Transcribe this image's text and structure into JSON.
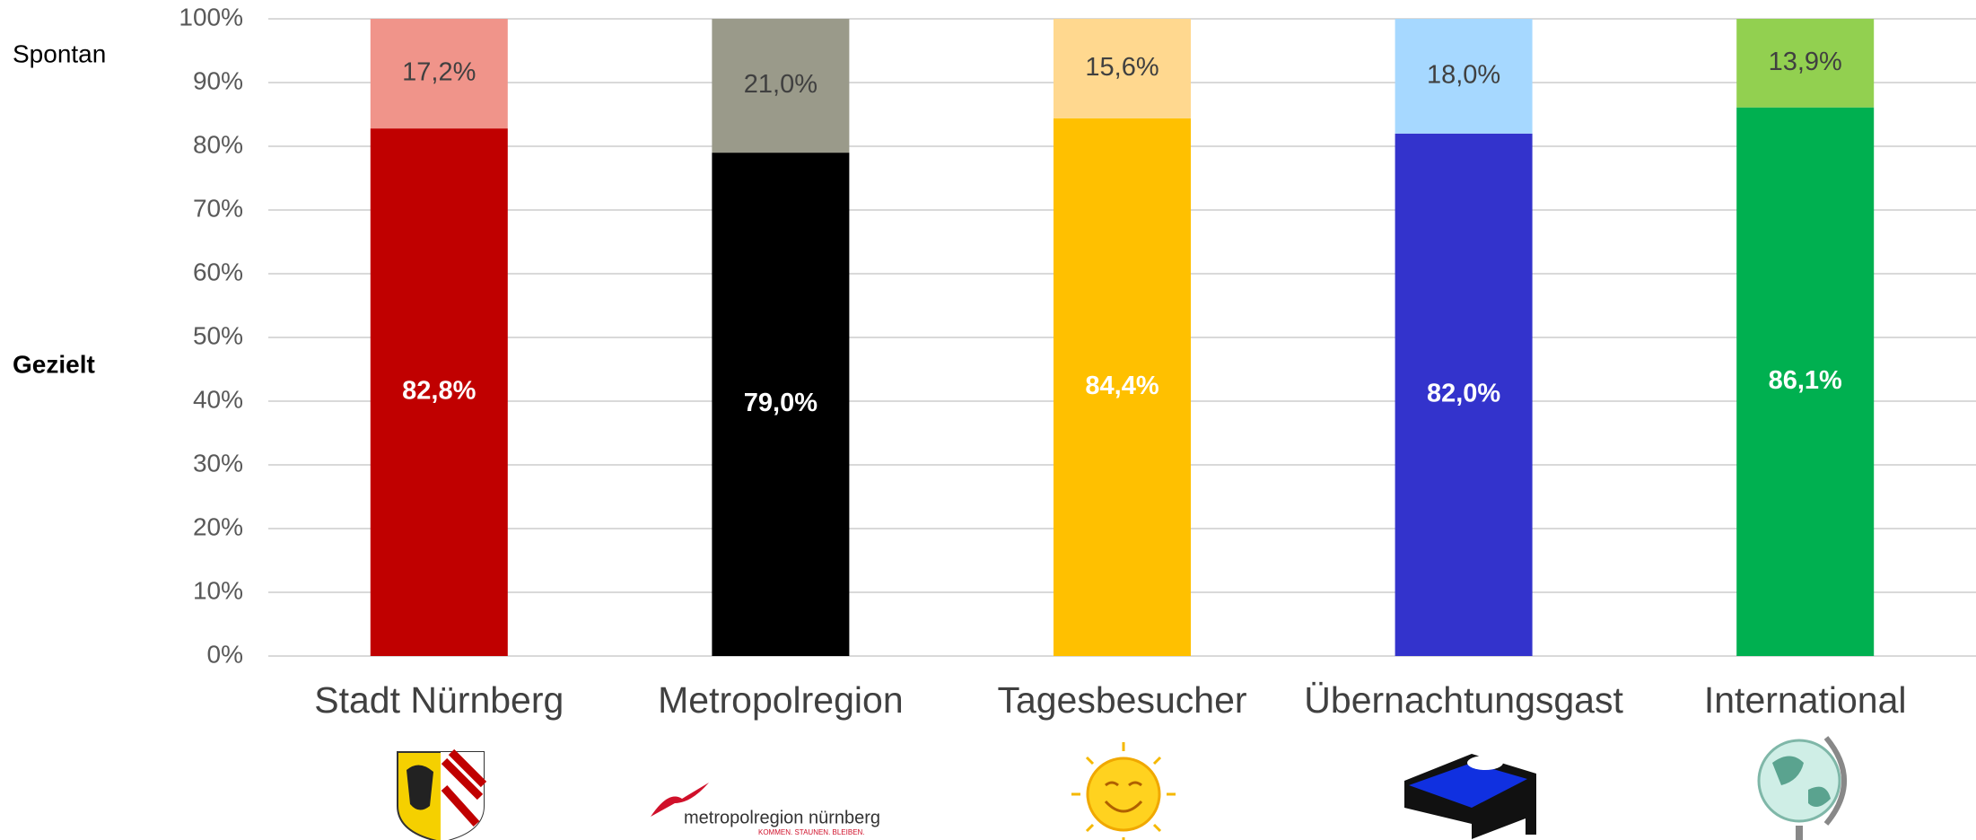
{
  "chart_data": {
    "type": "stacked_bar",
    "categories": [
      "Stadt Nürnberg",
      "Metropolregion",
      "Tagesbesucher",
      "Übernachtungsgast",
      "International"
    ],
    "series": [
      {
        "name": "Gezielt",
        "colors": [
          "#c00000",
          "#000000",
          "#ffc000",
          "#3333cc",
          "#00b050"
        ],
        "values": [
          82.8,
          79.0,
          84.4,
          82.0,
          86.1
        ],
        "value_labels": [
          "82,8%",
          "79,0%",
          "84,4%",
          "82,0%",
          "86,1%"
        ]
      },
      {
        "name": "Spontan",
        "colors": [
          "#f0948a",
          "#9a9a8a",
          "#ffd88f",
          "#a6d8ff",
          "#92d050"
        ],
        "values": [
          17.2,
          21.0,
          15.6,
          18.0,
          13.9
        ],
        "value_labels": [
          "17,2%",
          "21,0%",
          "15,6%",
          "18,0%",
          "13,9%"
        ]
      }
    ],
    "ylim": [
      0,
      100
    ],
    "yticks": [
      {
        "value": 0,
        "label": "0%"
      },
      {
        "value": 10,
        "label": "10%"
      },
      {
        "value": 20,
        "label": "20%"
      },
      {
        "value": 30,
        "label": "30%"
      },
      {
        "value": 40,
        "label": "40%"
      },
      {
        "value": 50,
        "label": "50%"
      },
      {
        "value": 60,
        "label": "60%"
      },
      {
        "value": 70,
        "label": "70%"
      },
      {
        "value": 80,
        "label": "80%"
      },
      {
        "value": 90,
        "label": "90%"
      },
      {
        "value": 100,
        "label": "100%"
      }
    ],
    "grid": true
  },
  "logo_text": {
    "name": "metropolregion nürnberg",
    "slogan": "KOMMEN. STAUNEN. BLEIBEN."
  }
}
